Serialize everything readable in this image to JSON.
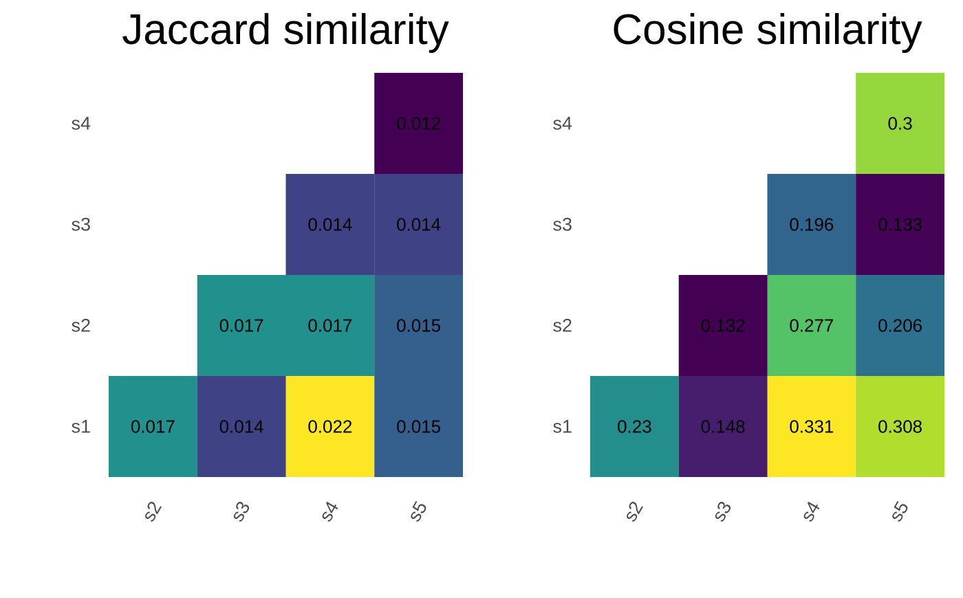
{
  "chart_data": [
    {
      "type": "heatmap",
      "title": "Jaccard similarity",
      "xlabel": "",
      "ylabel": "",
      "x_categories": [
        "s2",
        "s3",
        "s4",
        "s5"
      ],
      "y_categories": [
        "s1",
        "s2",
        "s3",
        "s4"
      ],
      "cells": [
        {
          "x": "s2",
          "y": "s1",
          "value": 0.017,
          "label": "0.017"
        },
        {
          "x": "s3",
          "y": "s1",
          "value": 0.014,
          "label": "0.014"
        },
        {
          "x": "s4",
          "y": "s1",
          "value": 0.022,
          "label": "0.022"
        },
        {
          "x": "s5",
          "y": "s1",
          "value": 0.015,
          "label": "0.015"
        },
        {
          "x": "s3",
          "y": "s2",
          "value": 0.017,
          "label": "0.017"
        },
        {
          "x": "s4",
          "y": "s2",
          "value": 0.017,
          "label": "0.017"
        },
        {
          "x": "s5",
          "y": "s2",
          "value": 0.015,
          "label": "0.015"
        },
        {
          "x": "s4",
          "y": "s3",
          "value": 0.014,
          "label": "0.014"
        },
        {
          "x": "s5",
          "y": "s3",
          "value": 0.014,
          "label": "0.014"
        },
        {
          "x": "s5",
          "y": "s4",
          "value": 0.012,
          "label": "0.012"
        }
      ],
      "color_scale": "viridis",
      "legend": "none",
      "grid": false
    },
    {
      "type": "heatmap",
      "title": "Cosine similarity",
      "xlabel": "",
      "ylabel": "",
      "x_categories": [
        "s2",
        "s3",
        "s4",
        "s5"
      ],
      "y_categories": [
        "s1",
        "s2",
        "s3",
        "s4"
      ],
      "cells": [
        {
          "x": "s2",
          "y": "s1",
          "value": 0.23,
          "label": "0.23"
        },
        {
          "x": "s3",
          "y": "s1",
          "value": 0.148,
          "label": "0.148"
        },
        {
          "x": "s4",
          "y": "s1",
          "value": 0.331,
          "label": "0.331"
        },
        {
          "x": "s5",
          "y": "s1",
          "value": 0.308,
          "label": "0.308"
        },
        {
          "x": "s3",
          "y": "s2",
          "value": 0.132,
          "label": "0.132"
        },
        {
          "x": "s4",
          "y": "s2",
          "value": 0.277,
          "label": "0.277"
        },
        {
          "x": "s5",
          "y": "s2",
          "value": 0.206,
          "label": "0.206"
        },
        {
          "x": "s4",
          "y": "s3",
          "value": 0.196,
          "label": "0.196"
        },
        {
          "x": "s5",
          "y": "s3",
          "value": 0.133,
          "label": "0.133"
        },
        {
          "x": "s5",
          "y": "s4",
          "value": 0.3,
          "label": "0.3"
        }
      ],
      "color_scale": "viridis",
      "legend": "none",
      "grid": false
    }
  ]
}
